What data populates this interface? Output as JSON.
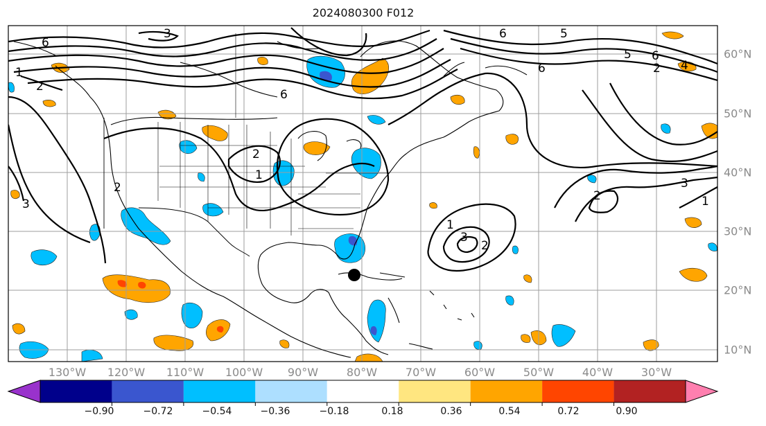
{
  "title": "2024080300 F012",
  "longitude_labels": [
    "130°W",
    "120°W",
    "110°W",
    "100°W",
    "90°W",
    "80°W",
    "70°W",
    "60°W",
    "50°W",
    "40°W",
    "30°W"
  ],
  "latitude_labels": [
    "60°N",
    "50°N",
    "40°N",
    "30°N",
    "20°N",
    "10°N"
  ],
  "contour_labels": [
    "6",
    "1",
    "5",
    "2",
    "3",
    "4"
  ],
  "colorbar": {
    "tick_labels": [
      "−0.90",
      "−0.72",
      "−0.54",
      "−0.36",
      "−0.18",
      "0.18",
      "0.36",
      "0.54",
      "0.72",
      "0.90"
    ],
    "colors": [
      "#9932CC",
      "#00008B",
      "#3A56CF",
      "#00BFFF",
      "#ADDFFF",
      "#FFFFFF",
      "#FFE680",
      "#FFA500",
      "#FF4500",
      "#B22222",
      "#FF7FAF"
    ]
  },
  "icons": [
    "storm-center-marker"
  ]
}
